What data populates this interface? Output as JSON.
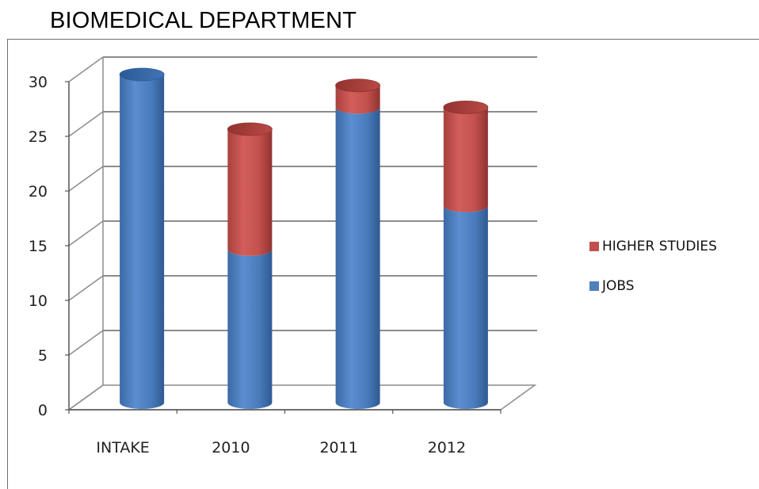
{
  "title": "BIOMEDICAL DEPARTMENT",
  "chart_data": {
    "type": "bar",
    "stacked": true,
    "style": "3d-cylinder",
    "categories": [
      "INTAKE",
      "2010",
      "2011",
      "2012"
    ],
    "series": [
      {
        "name": "JOBS",
        "color": "#4F81BD",
        "values": [
          30,
          14,
          27,
          18
        ]
      },
      {
        "name": "HIGHER STUDIES",
        "color": "#C0504D",
        "values": [
          0,
          11,
          2,
          9
        ]
      }
    ],
    "yticks": [
      0,
      5,
      10,
      15,
      20,
      25,
      30
    ],
    "ylim": [
      0,
      30
    ],
    "grid": true,
    "legend_position": "right"
  }
}
